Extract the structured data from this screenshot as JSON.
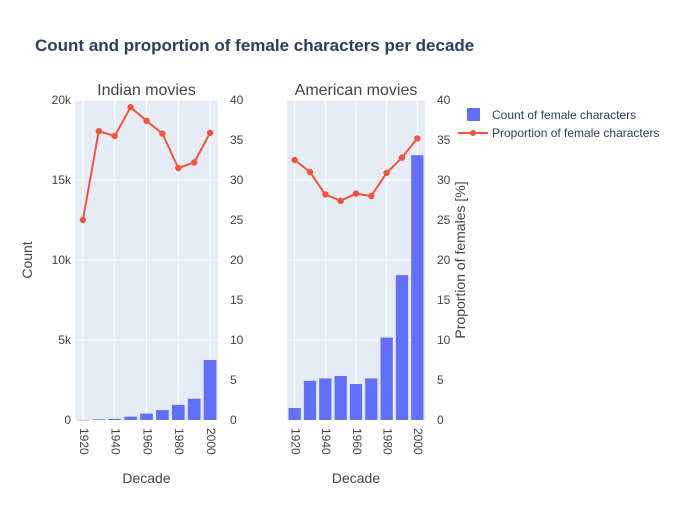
{
  "colors": {
    "background": "#ffffff",
    "plot_bg": "#e5ecf6",
    "grid": "#ffffff",
    "bar": "#636efa",
    "line": "#ef553b",
    "text": "#2a3f5f",
    "tick_text": "#444444"
  },
  "chart_data": {
    "type": "bar",
    "title": "Count and proportion of female characters per decade",
    "legend": {
      "placement": "right",
      "entries": [
        {
          "label": "Count of female characters",
          "marker": "bar"
        },
        {
          "label": "Proportion of female characters",
          "marker": "line"
        }
      ]
    },
    "y_left_label": "Count",
    "y_right_label": "Proportion of females [%]",
    "x_label": "Decade",
    "subplots": [
      {
        "title": "Indian movies",
        "xlabel": "Decade",
        "x_ticks": [
          1920,
          1940,
          1960,
          1980,
          2000
        ],
        "y_left": {
          "range": [
            0,
            20000
          ],
          "tick_values": [
            0,
            5000,
            10000,
            15000,
            20000
          ],
          "tick_labels": [
            "0",
            "5k",
            "10k",
            "15k",
            "20k"
          ]
        },
        "y_right": {
          "range": [
            0,
            40
          ],
          "tick_values": [
            0,
            5,
            10,
            15,
            20,
            25,
            30,
            35,
            40
          ],
          "tick_labels": [
            "0",
            "5",
            "10",
            "15",
            "20",
            "25",
            "30",
            "35",
            "40"
          ]
        },
        "series": [
          {
            "name": "Count of female characters",
            "kind": "bar",
            "x": [
              1920,
              1930,
              1940,
              1950,
              1960,
              1970,
              1980,
              1990,
              2000
            ],
            "values": [
              10,
              40,
              70,
              210,
              400,
              620,
              950,
              1330,
              3750
            ]
          },
          {
            "name": "Proportion of female characters",
            "kind": "line",
            "x": [
              1920,
              1930,
              1940,
              1950,
              1960,
              1970,
              1980,
              1990,
              2000
            ],
            "values": [
              25.0,
              36.1,
              35.5,
              39.1,
              37.4,
              35.8,
              31.5,
              32.2,
              35.9
            ]
          }
        ]
      },
      {
        "title": "American movies",
        "xlabel": "Decade",
        "x_ticks": [
          1920,
          1940,
          1960,
          1980,
          2000
        ],
        "y_left": {
          "range": [
            0,
            20000
          ],
          "tick_values": [
            0,
            5000,
            10000,
            15000,
            20000
          ],
          "tick_labels": []
        },
        "y_right": {
          "range": [
            0,
            40
          ],
          "tick_values": [
            0,
            5,
            10,
            15,
            20,
            25,
            30,
            35,
            40
          ],
          "tick_labels": [
            "0",
            "5",
            "10",
            "15",
            "20",
            "25",
            "30",
            "35",
            "40"
          ]
        },
        "series": [
          {
            "name": "Count of female characters",
            "kind": "bar",
            "x": [
              1920,
              1930,
              1940,
              1950,
              1960,
              1970,
              1980,
              1990,
              2000
            ],
            "values": [
              750,
              2450,
              2600,
              2750,
              2250,
              2600,
              5150,
              9050,
              16550
            ]
          },
          {
            "name": "Proportion of female characters",
            "kind": "line",
            "x": [
              1920,
              1930,
              1940,
              1950,
              1960,
              1970,
              1980,
              1990,
              2000
            ],
            "values": [
              32.5,
              31.0,
              28.2,
              27.4,
              28.3,
              28.0,
              30.9,
              32.8,
              35.2
            ]
          }
        ]
      }
    ]
  }
}
